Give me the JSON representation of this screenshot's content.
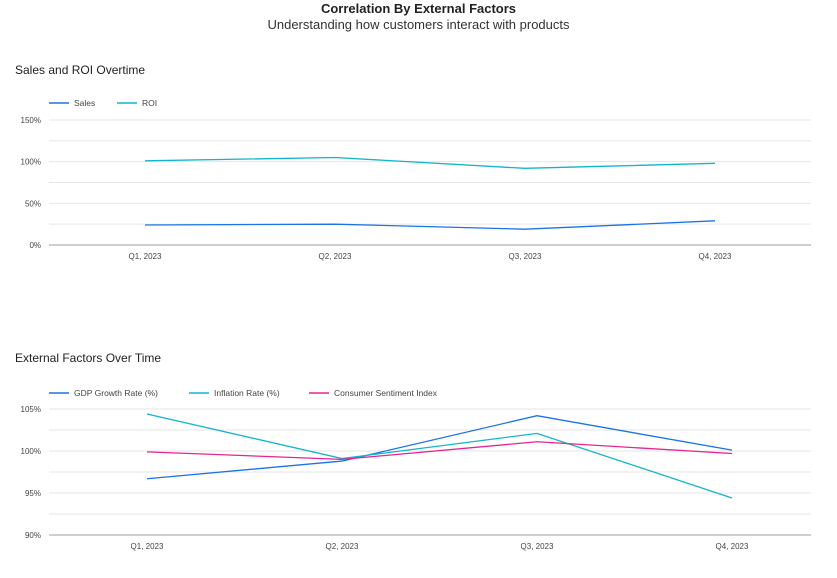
{
  "page": {
    "title": "Correlation By External Factors",
    "subtitle": "Understanding how customers interact with products"
  },
  "chart_data": [
    {
      "type": "line",
      "title": "Sales and ROI Overtime",
      "categories": [
        "Q1, 2023",
        "Q2, 2023",
        "Q3, 2023",
        "Q4, 2023"
      ],
      "series": [
        {
          "name": "Sales",
          "color": "#1a73e8",
          "values": [
            24,
            25,
            19,
            29
          ]
        },
        {
          "name": "ROI",
          "color": "#12b5cb",
          "values": [
            101,
            105,
            92,
            98
          ]
        }
      ],
      "ylim": [
        0,
        150
      ],
      "yticks": [
        0,
        50,
        100,
        150
      ],
      "ytick_labels": [
        "0%",
        "50%",
        "100%",
        "150%"
      ],
      "grid": true,
      "legend": "top-left"
    },
    {
      "type": "line",
      "title": "External Factors Over Time",
      "categories": [
        "Q1, 2023",
        "Q2, 2023",
        "Q3, 2023",
        "Q4, 2023"
      ],
      "series": [
        {
          "name": "GDP Growth Rate (%)",
          "color": "#1a73e8",
          "values": [
            96.7,
            98.8,
            104.2,
            100.1
          ]
        },
        {
          "name": "Inflation Rate (%)",
          "color": "#12b5cb",
          "values": [
            104.4,
            99.1,
            102.1,
            94.4
          ]
        },
        {
          "name": "Consumer Sentiment Index",
          "color": "#e52592",
          "values": [
            99.9,
            99.0,
            101.1,
            99.7
          ]
        }
      ],
      "ylim": [
        90,
        105
      ],
      "yticks": [
        90,
        95,
        100,
        105
      ],
      "ytick_labels": [
        "90%",
        "95%",
        "100%",
        "105%"
      ],
      "grid": true,
      "legend": "top-left"
    }
  ]
}
